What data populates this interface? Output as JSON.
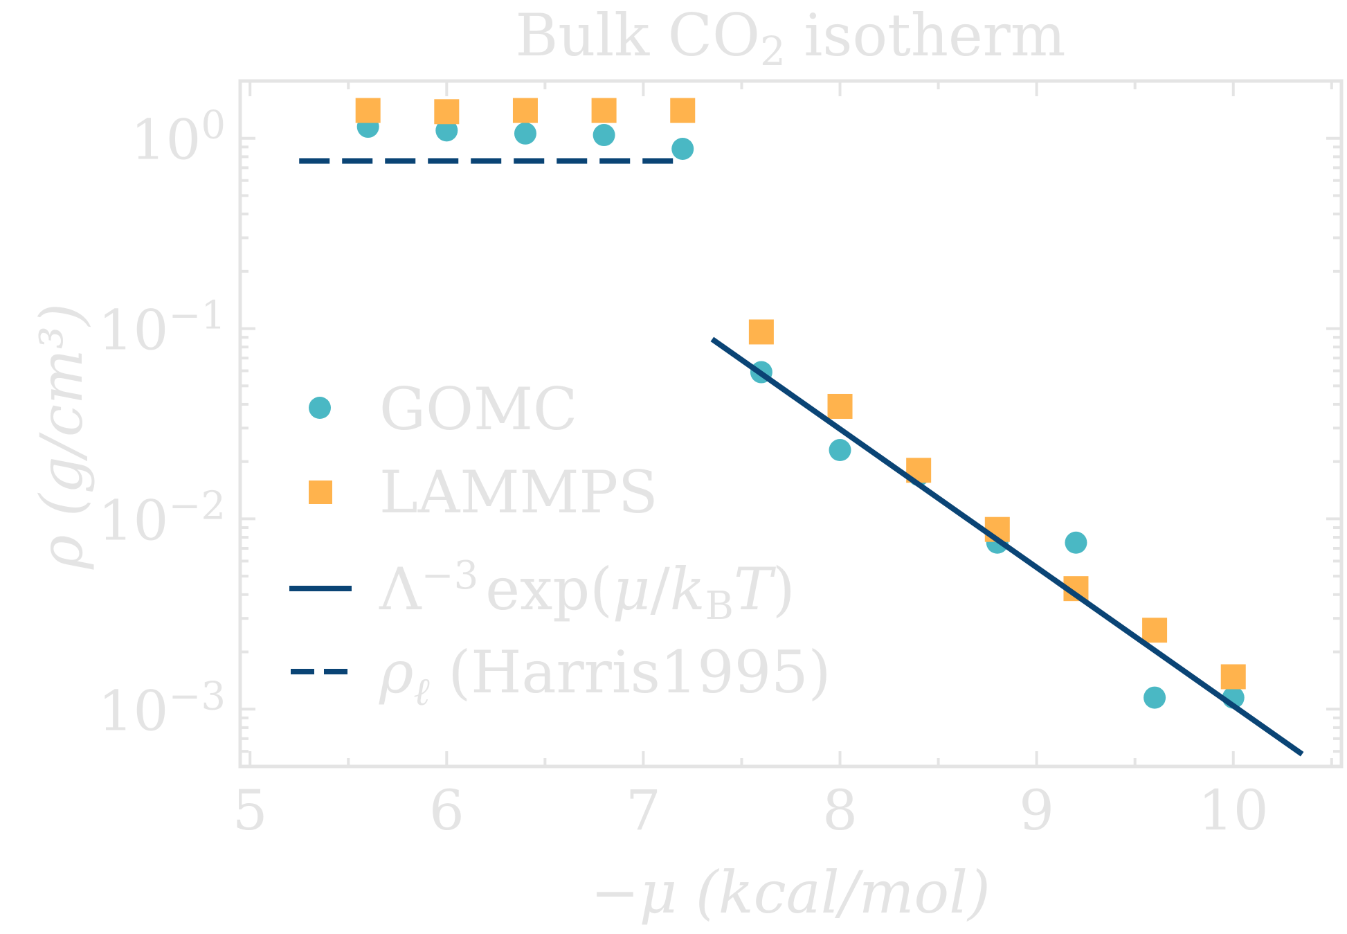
{
  "chart_data": {
    "type": "scatter",
    "title_main": "Bulk CO",
    "title_sub": "2",
    "title_tail": " isotherm",
    "xlabel": "−μ (kcal/mol)",
    "ylabel": "ρ (g/cm³)",
    "xlim": [
      4.95,
      10.55
    ],
    "ylim": [
      0.0005,
      2.0
    ],
    "yscale": "log",
    "grid": false,
    "legend_position": "left",
    "x_ticks": [
      {
        "value": 5,
        "label": "5"
      },
      {
        "value": 6,
        "label": "6"
      },
      {
        "value": 7,
        "label": "7"
      },
      {
        "value": 8,
        "label": "8"
      },
      {
        "value": 9,
        "label": "9"
      },
      {
        "value": 10,
        "label": "10"
      }
    ],
    "y_ticks": [
      {
        "value": 1,
        "base": "10",
        "exp": "0"
      },
      {
        "value": 0.1,
        "base": "10",
        "exp": "−1"
      },
      {
        "value": 0.01,
        "base": "10",
        "exp": "−2"
      },
      {
        "value": 0.001,
        "base": "10",
        "exp": "−3"
      }
    ],
    "series": [
      {
        "name": "GOMC",
        "kind": "scatter",
        "marker": "circle",
        "color": "#4ab8c4",
        "x": [
          5.6,
          6.0,
          6.4,
          6.8,
          7.2,
          7.6,
          8.0,
          8.4,
          8.8,
          9.2,
          9.6,
          10.0
        ],
        "y": [
          1.15,
          1.1,
          1.06,
          1.04,
          0.88,
          0.059,
          0.023,
          0.017,
          0.0075,
          0.0075,
          0.00115,
          0.00115
        ]
      },
      {
        "name": "LAMMPS",
        "kind": "scatter",
        "marker": "square",
        "color": "#ffb34d",
        "x": [
          5.6,
          6.0,
          6.4,
          6.8,
          7.2,
          7.6,
          8.0,
          8.4,
          8.8,
          9.2,
          9.6,
          10.0
        ],
        "y": [
          1.4,
          1.38,
          1.4,
          1.4,
          1.4,
          0.096,
          0.039,
          0.018,
          0.0088,
          0.0043,
          0.0026,
          0.00148
        ]
      },
      {
        "name": "Λ⁻³ exp(μ/k_B T)",
        "kind": "line",
        "style": "solid",
        "color": "#0a4475",
        "x": [
          7.35,
          10.35
        ],
        "y": [
          0.088,
          0.00058
        ]
      },
      {
        "name": "ρ_ℓ (Harris1995)",
        "kind": "line",
        "style": "dashed",
        "color": "#0a4475",
        "x": [
          5.25,
          7.2
        ],
        "y": [
          0.76,
          0.76
        ]
      }
    ],
    "legend": [
      {
        "marker": "circle",
        "color": "#4ab8c4",
        "label": "GOMC"
      },
      {
        "marker": "square",
        "color": "#ffb34d",
        "label": "LAMMPS"
      },
      {
        "marker": "line",
        "color": "#0a4475",
        "lbl_a": "Λ",
        "lbl_b": "−3",
        "lbl_c": "exp(",
        "lbl_d": "μ",
        "lbl_e": "/",
        "lbl_f": "k",
        "lbl_g": "B",
        "lbl_h": "T",
        "lbl_i": ")"
      },
      {
        "marker": "dash",
        "color": "#0a4475",
        "lbl_a": "ρ",
        "lbl_b": "ℓ",
        "lbl_c": " (Harris1995)"
      }
    ]
  }
}
